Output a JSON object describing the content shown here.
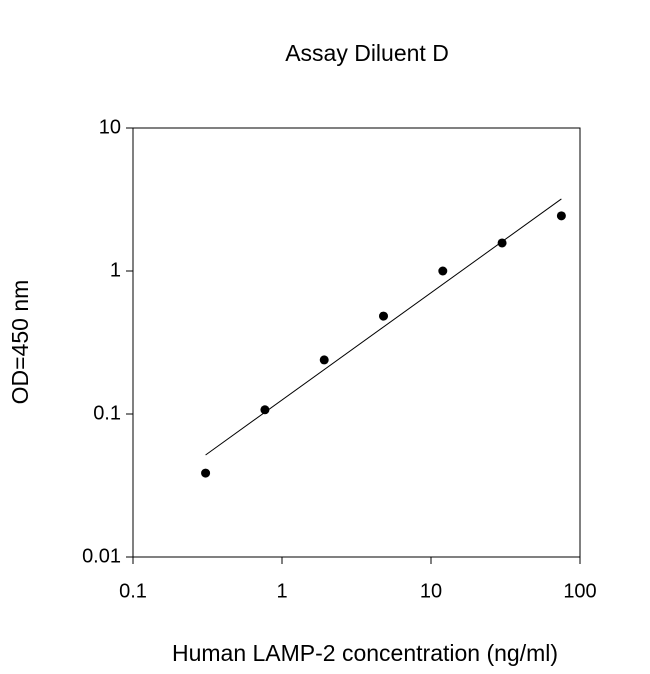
{
  "chart_data": {
    "type": "scatter",
    "title": "Assay Diluent D",
    "x_label": "Human LAMP-2 concentration (ng/ml)",
    "y_label": "OD=450 nm",
    "x": [
      0.307,
      0.768,
      1.92,
      4.8,
      12,
      30,
      75
    ],
    "values": [
      0.0386,
      0.107,
      0.239,
      0.484,
      1.0,
      1.57,
      2.43
    ],
    "color": "#000000",
    "fit": {
      "x": [
        0.307,
        75
      ],
      "values": [
        0.0517,
        3.19
      ]
    },
    "xscale": "log",
    "yscale": "log",
    "xlim": [
      0.1,
      100
    ],
    "ylim": [
      0.01,
      10
    ],
    "xticks": [
      0.1,
      1,
      10,
      100
    ],
    "yticks": [
      0.01,
      0.1,
      1,
      10
    ],
    "grid": false
  }
}
